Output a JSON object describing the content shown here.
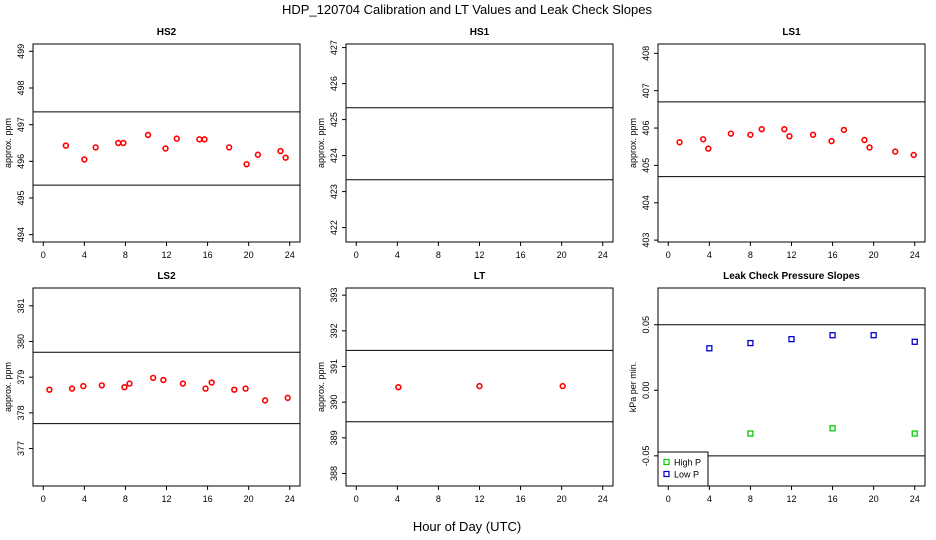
{
  "figure": {
    "title": "HDP_120704  Calibration and LT Values and Leak Check Slopes",
    "xlabel": "Hour of Day (UTC)"
  },
  "chart_data": [
    {
      "type": "scatter",
      "title": "HS2",
      "ylabel": "approx. ppm",
      "xlim": [
        -1,
        25
      ],
      "ylim": [
        493.8,
        499.2
      ],
      "xticks": [
        0,
        4,
        8,
        12,
        16,
        20,
        24
      ],
      "yticks": [
        494,
        495,
        496,
        497,
        498,
        499
      ],
      "hlines": [
        495.35,
        497.35
      ],
      "color": "#ff0000",
      "marker": "circle",
      "x": [
        2.2,
        4.0,
        5.1,
        7.3,
        7.8,
        10.2,
        11.9,
        13.0,
        15.2,
        15.7,
        18.1,
        19.8,
        20.9,
        23.1,
        23.6
      ],
      "y": [
        496.43,
        496.05,
        496.38,
        496.5,
        496.5,
        496.72,
        496.35,
        496.62,
        496.6,
        496.6,
        496.38,
        495.92,
        496.18,
        496.28,
        496.1
      ]
    },
    {
      "type": "scatter",
      "title": "HS1",
      "ylabel": "approx. ppm",
      "xlim": [
        -1,
        25
      ],
      "ylim": [
        421.6,
        427.1
      ],
      "xticks": [
        0,
        4,
        8,
        12,
        16,
        20,
        24
      ],
      "yticks": [
        422,
        423,
        424,
        425,
        426,
        427
      ],
      "hlines": [
        423.33,
        425.33
      ],
      "color": "#ff0000",
      "marker": "circle",
      "x": [],
      "y": []
    },
    {
      "type": "scatter",
      "title": "LS1",
      "ylabel": "approx. ppm",
      "xlim": [
        -1,
        25
      ],
      "ylim": [
        402.95,
        408.25
      ],
      "xticks": [
        0,
        4,
        8,
        12,
        16,
        20,
        24
      ],
      "yticks": [
        403,
        404,
        405,
        406,
        407,
        408
      ],
      "hlines": [
        404.7,
        406.7
      ],
      "color": "#ff0000",
      "marker": "circle",
      "x": [
        1.1,
        3.4,
        3.9,
        6.1,
        8.0,
        9.1,
        11.3,
        11.8,
        14.1,
        15.9,
        17.1,
        19.1,
        19.6,
        22.1,
        23.9
      ],
      "y": [
        405.62,
        405.7,
        405.45,
        405.85,
        405.82,
        405.97,
        405.97,
        405.78,
        405.82,
        405.65,
        405.95,
        405.68,
        405.48,
        405.37,
        405.28
      ]
    },
    {
      "type": "scatter",
      "title": "LS2",
      "ylabel": "approx. ppm",
      "xlim": [
        -1,
        25
      ],
      "ylim": [
        375.95,
        381.5
      ],
      "xticks": [
        0,
        4,
        8,
        12,
        16,
        20,
        24
      ],
      "yticks": [
        377,
        378,
        379,
        380,
        381
      ],
      "hlines": [
        377.7,
        379.7
      ],
      "color": "#ff0000",
      "marker": "circle",
      "x": [
        0.6,
        2.8,
        3.9,
        5.7,
        7.9,
        8.4,
        10.7,
        11.7,
        13.6,
        15.8,
        16.4,
        18.6,
        19.7,
        21.6,
        23.8
      ],
      "y": [
        378.65,
        378.68,
        378.75,
        378.77,
        378.72,
        378.82,
        378.98,
        378.92,
        378.82,
        378.68,
        378.85,
        378.65,
        378.68,
        378.35,
        378.42
      ]
    },
    {
      "type": "scatter",
      "title": "LT",
      "ylabel": "approx. ppm",
      "xlim": [
        -1,
        25
      ],
      "ylim": [
        387.65,
        393.2
      ],
      "xticks": [
        0,
        4,
        8,
        12,
        16,
        20,
        24
      ],
      "yticks": [
        388,
        389,
        390,
        391,
        392,
        393
      ],
      "hlines": [
        389.45,
        391.45
      ],
      "color": "#ff0000",
      "marker": "circle",
      "x": [
        4.1,
        12.0,
        20.1
      ],
      "y": [
        390.42,
        390.45,
        390.45
      ]
    },
    {
      "type": "scatter",
      "title": "Leak Check Pressure Slopes",
      "ylabel": "kPa per min.",
      "xlim": [
        -1,
        25
      ],
      "ylim": [
        -0.073,
        0.078
      ],
      "xticks": [
        0,
        4,
        8,
        12,
        16,
        20,
        24
      ],
      "yticks": [
        -0.05,
        0.0,
        0.05
      ],
      "ytick_labels": [
        "-0.05",
        "0.00",
        "0.05"
      ],
      "hlines": [
        -0.05,
        0.05
      ],
      "series": [
        {
          "name": "High P",
          "color": "#00cc00",
          "marker": "square",
          "x": [
            8,
            16,
            24
          ],
          "y": [
            -0.033,
            -0.029,
            -0.033
          ]
        },
        {
          "name": "Low P",
          "color": "#0000cc",
          "marker": "square",
          "x": [
            4,
            8,
            12,
            16,
            20,
            24
          ],
          "y": [
            0.032,
            0.036,
            0.039,
            0.042,
            0.042,
            0.037
          ]
        }
      ],
      "legend": "bottom-left"
    }
  ]
}
